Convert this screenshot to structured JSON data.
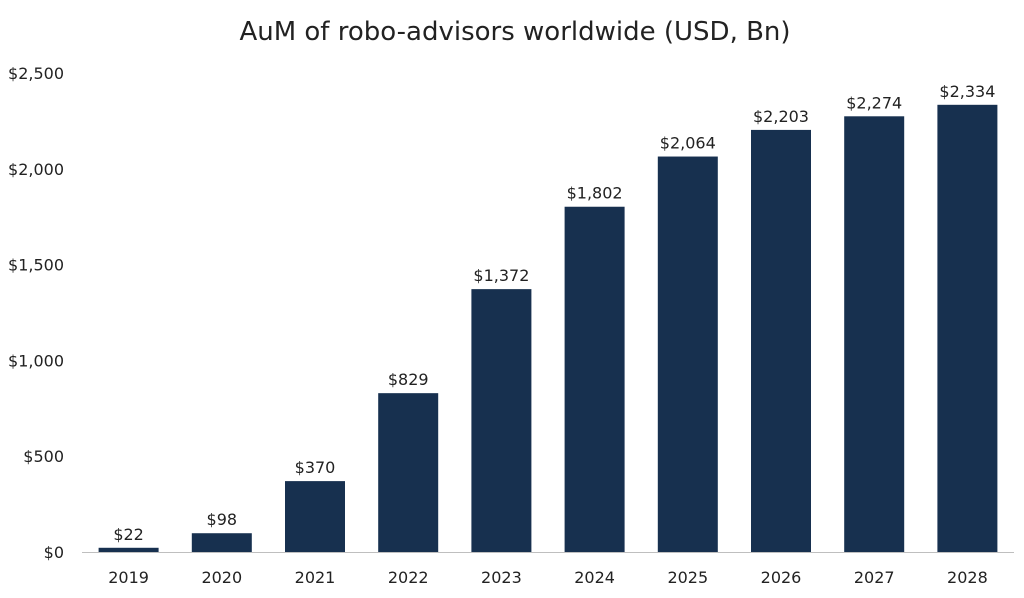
{
  "chart_data": {
    "type": "bar",
    "title": "AuM of robo-advisors worldwide (USD, Bn)",
    "xlabel": "",
    "ylabel": "",
    "categories": [
      "2019",
      "2020",
      "2021",
      "2022",
      "2023",
      "2024",
      "2025",
      "2026",
      "2027",
      "2028"
    ],
    "values": [
      22,
      98,
      370,
      829,
      1372,
      1802,
      2064,
      2203,
      2274,
      2334
    ],
    "data_labels": [
      "$22",
      "$98",
      "$370",
      "$829",
      "$1,372",
      "$1,802",
      "$2,064",
      "$2,203",
      "$2,274",
      "$2,334"
    ],
    "ylim": [
      0,
      2500
    ],
    "yticks": [
      0,
      500,
      1000,
      1500,
      2000,
      2500
    ],
    "ytick_labels": [
      "$0",
      "$500",
      "$1,000",
      "$1,500",
      "$2,000",
      "$2,500"
    ],
    "grid": false,
    "legend": "none",
    "colors": {
      "bar": "#17304f",
      "axis": "#bfbfbf",
      "text": "#222222"
    }
  }
}
